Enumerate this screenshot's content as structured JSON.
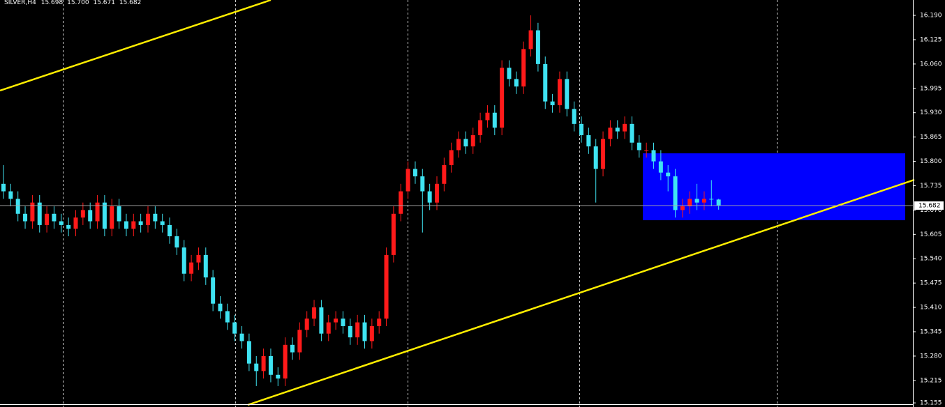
{
  "chart_data": {
    "type": "candlestick",
    "title": "SILVER,H4",
    "header_values": [
      "15.698",
      "15.700",
      "15.671",
      "15.682"
    ],
    "up_color": "#ff1a1a",
    "down_color": "#3fe3f2",
    "ylim": [
      15.144,
      16.231
    ],
    "yticks": [
      {
        "value": 16.19,
        "label": "16.190"
      },
      {
        "value": 16.125,
        "label": "16.125"
      },
      {
        "value": 16.06,
        "label": "16.060"
      },
      {
        "value": 15.995,
        "label": "15.995"
      },
      {
        "value": 15.93,
        "label": "15.930"
      },
      {
        "value": 15.865,
        "label": "15.865"
      },
      {
        "value": 15.8,
        "label": "15.800"
      },
      {
        "value": 15.735,
        "label": "15.735"
      },
      {
        "value": 15.67,
        "label": "15.670"
      },
      {
        "value": 15.605,
        "label": "15.605"
      },
      {
        "value": 15.54,
        "label": "15.540"
      },
      {
        "value": 15.475,
        "label": "15.475"
      },
      {
        "value": 15.41,
        "label": "15.410"
      },
      {
        "value": 15.345,
        "label": "15.345"
      },
      {
        "value": 15.28,
        "label": "15.280"
      },
      {
        "value": 15.215,
        "label": "15.215"
      },
      {
        "value": 15.155,
        "label": "15.155"
      }
    ],
    "series": [
      {
        "name": "SILVER",
        "open": [
          15.74,
          15.72,
          15.7,
          15.66,
          15.64,
          15.69,
          15.63,
          15.66,
          15.64,
          15.63,
          15.62,
          15.65,
          15.67,
          15.64,
          15.69,
          15.62,
          15.68,
          15.64,
          15.62,
          15.64,
          15.63,
          15.66,
          15.64,
          15.63,
          15.6,
          15.57,
          15.5,
          15.53,
          15.55,
          15.49,
          15.42,
          15.4,
          15.37,
          15.34,
          15.32,
          15.26,
          15.24,
          15.28,
          15.23,
          15.22,
          15.31,
          15.29,
          15.35,
          15.38,
          15.41,
          15.34,
          15.37,
          15.38,
          15.36,
          15.33,
          15.37,
          15.32,
          15.36,
          15.38,
          15.55,
          15.66,
          15.72,
          15.78,
          15.76,
          15.72,
          15.69,
          15.74,
          15.79,
          15.83,
          15.86,
          15.84,
          15.87,
          15.91,
          15.93,
          15.89,
          16.05,
          16.02,
          16.0,
          16.1,
          16.15,
          16.06,
          15.96,
          15.95,
          16.02,
          15.94,
          15.9,
          15.87,
          15.84,
          15.78,
          15.86,
          15.89,
          15.88,
          15.9,
          15.85,
          15.83,
          15.83,
          15.8,
          15.77,
          15.76,
          15.67,
          15.68,
          15.7,
          15.69,
          15.7,
          15.698
        ],
        "high": [
          15.79,
          15.74,
          15.72,
          15.68,
          15.71,
          15.71,
          15.68,
          15.68,
          15.66,
          15.65,
          15.67,
          15.69,
          15.69,
          15.71,
          15.71,
          15.7,
          15.7,
          15.66,
          15.66,
          15.66,
          15.68,
          15.68,
          15.66,
          15.65,
          15.62,
          15.59,
          15.55,
          15.57,
          15.57,
          15.51,
          15.44,
          15.42,
          15.39,
          15.36,
          15.34,
          15.28,
          15.3,
          15.3,
          15.25,
          15.33,
          15.33,
          15.37,
          15.4,
          15.43,
          15.43,
          15.39,
          15.4,
          15.4,
          15.38,
          15.39,
          15.39,
          15.38,
          15.4,
          15.57,
          15.68,
          15.74,
          15.8,
          15.8,
          15.78,
          15.74,
          15.76,
          15.81,
          15.85,
          15.88,
          15.88,
          15.89,
          15.93,
          15.95,
          15.95,
          16.07,
          16.07,
          16.04,
          16.12,
          16.19,
          16.17,
          16.08,
          15.98,
          16.04,
          16.04,
          15.96,
          15.92,
          15.89,
          15.86,
          15.88,
          15.91,
          15.91,
          15.92,
          15.92,
          15.87,
          15.85,
          15.85,
          15.83,
          15.79,
          15.78,
          15.7,
          15.72,
          15.74,
          15.72,
          15.75,
          15.7
        ],
        "low": [
          15.7,
          15.68,
          15.64,
          15.62,
          15.62,
          15.61,
          15.61,
          15.62,
          15.61,
          15.6,
          15.6,
          15.63,
          15.62,
          15.62,
          15.6,
          15.6,
          15.62,
          15.6,
          15.6,
          15.61,
          15.61,
          15.62,
          15.61,
          15.58,
          15.55,
          15.48,
          15.48,
          15.51,
          15.47,
          15.4,
          15.38,
          15.35,
          15.32,
          15.3,
          15.24,
          15.2,
          15.22,
          15.21,
          15.2,
          15.2,
          15.27,
          15.27,
          15.33,
          15.36,
          15.32,
          15.32,
          15.35,
          15.34,
          15.31,
          15.31,
          15.3,
          15.3,
          15.34,
          15.36,
          15.53,
          15.64,
          15.7,
          15.74,
          15.61,
          15.67,
          15.67,
          15.72,
          15.77,
          15.81,
          15.82,
          15.82,
          15.85,
          15.89,
          15.87,
          15.87,
          16.0,
          15.98,
          15.98,
          16.08,
          16.04,
          15.94,
          15.93,
          15.93,
          15.92,
          15.88,
          15.85,
          15.82,
          15.69,
          15.76,
          15.84,
          15.86,
          15.86,
          15.83,
          15.81,
          15.81,
          15.78,
          15.75,
          15.72,
          15.65,
          15.65,
          15.66,
          15.67,
          15.67,
          15.68,
          15.671
        ],
        "close": [
          15.72,
          15.7,
          15.66,
          15.64,
          15.69,
          15.63,
          15.66,
          15.64,
          15.63,
          15.62,
          15.65,
          15.67,
          15.64,
          15.69,
          15.62,
          15.68,
          15.64,
          15.62,
          15.64,
          15.63,
          15.66,
          15.64,
          15.63,
          15.6,
          15.57,
          15.5,
          15.53,
          15.55,
          15.49,
          15.42,
          15.4,
          15.37,
          15.34,
          15.32,
          15.26,
          15.24,
          15.28,
          15.23,
          15.22,
          15.31,
          15.29,
          15.35,
          15.38,
          15.41,
          15.34,
          15.37,
          15.38,
          15.36,
          15.33,
          15.37,
          15.32,
          15.36,
          15.38,
          15.55,
          15.66,
          15.72,
          15.78,
          15.76,
          15.72,
          15.69,
          15.74,
          15.79,
          15.83,
          15.86,
          15.84,
          15.87,
          15.91,
          15.93,
          15.89,
          16.05,
          16.02,
          16.0,
          16.1,
          16.15,
          16.06,
          15.96,
          15.95,
          16.02,
          15.94,
          15.9,
          15.87,
          15.84,
          15.78,
          15.86,
          15.89,
          15.88,
          15.9,
          15.85,
          15.83,
          15.83,
          15.8,
          15.77,
          15.76,
          15.67,
          15.68,
          15.7,
          15.69,
          15.7,
          15.698,
          15.682
        ]
      }
    ]
  }
}
